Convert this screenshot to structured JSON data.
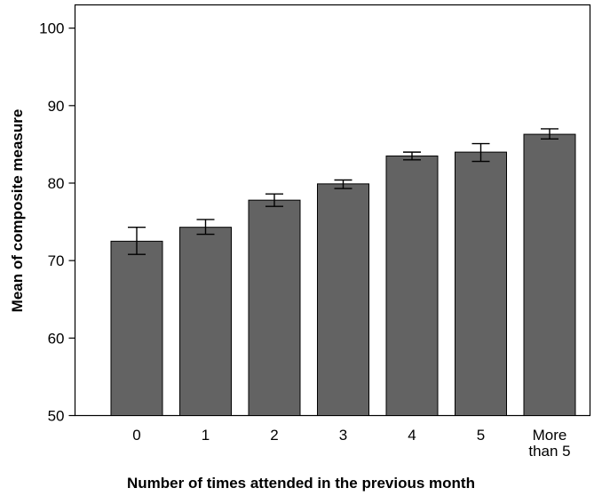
{
  "chart_data": {
    "type": "bar",
    "title": "",
    "xlabel": "Number of times attended in the previous month",
    "ylabel": "Mean of composite measure",
    "categories": [
      "0",
      "1",
      "2",
      "3",
      "4",
      "5",
      "More than 5"
    ],
    "category_label_lines": [
      [
        "0"
      ],
      [
        "1"
      ],
      [
        "2"
      ],
      [
        "3"
      ],
      [
        "4"
      ],
      [
        "5"
      ],
      [
        "More",
        "than 5"
      ]
    ],
    "values": [
      72.5,
      74.3,
      77.8,
      79.9,
      83.5,
      84.0,
      86.3
    ],
    "error_low": [
      70.8,
      73.4,
      77.0,
      79.3,
      83.0,
      82.8,
      85.7
    ],
    "error_high": [
      74.3,
      75.3,
      78.6,
      80.4,
      84.0,
      85.1,
      87.0
    ],
    "ylim": [
      50,
      103
    ],
    "yticks": [
      50,
      60,
      70,
      80,
      90,
      100
    ],
    "grid": false,
    "legend": "none",
    "colors": {
      "bar": "#636363",
      "bar_edge": "#000000",
      "axis": "#000000"
    }
  }
}
